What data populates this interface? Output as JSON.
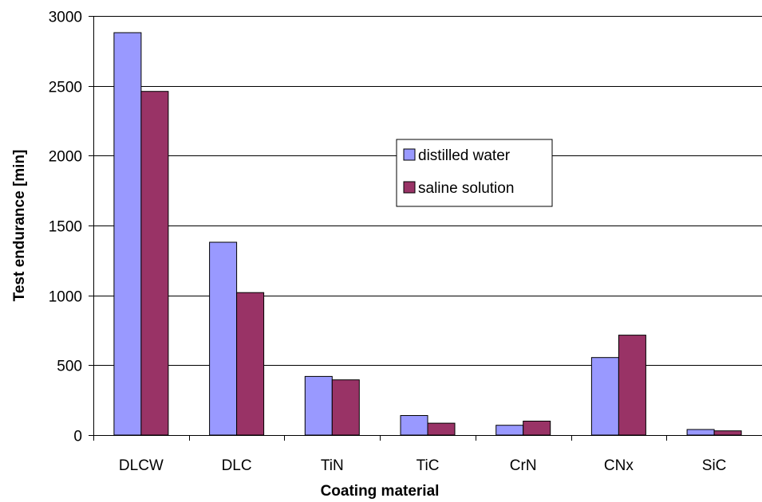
{
  "chart_data": {
    "type": "bar",
    "title": "",
    "xlabel": "Coating material",
    "ylabel": "Test endurance [min]",
    "categories": [
      "DLCW",
      "DLC",
      "TiN",
      "TiC",
      "CrN",
      "CNx",
      "SiC"
    ],
    "series": [
      {
        "name": "distilled water",
        "color": "#9999ff",
        "values": [
          2880,
          1380,
          420,
          140,
          70,
          555,
          40
        ]
      },
      {
        "name": "saline solution",
        "color": "#993366",
        "values": [
          2460,
          1020,
          395,
          85,
          100,
          715,
          30
        ]
      }
    ],
    "ylim": [
      0,
      3000
    ],
    "yticks": [
      0,
      500,
      1000,
      1500,
      2000,
      2500,
      3000
    ],
    "grid": true,
    "legend_position": "center-right, upper half"
  }
}
